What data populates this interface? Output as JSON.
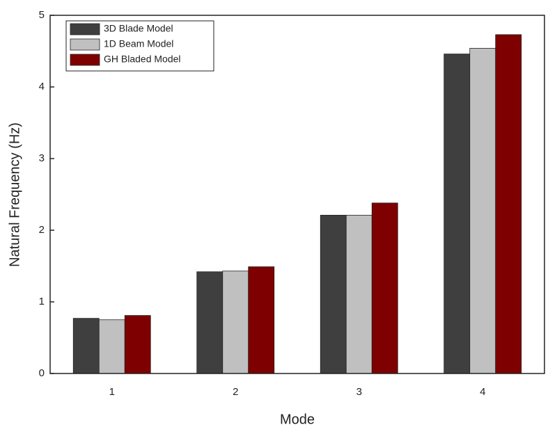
{
  "chart_data": {
    "type": "bar",
    "x_label": "Mode",
    "y_label": "Natural Frequency (Hz)",
    "categories": [
      "1",
      "2",
      "3",
      "4"
    ],
    "series": [
      {
        "name": "3D Blade Model",
        "color": "#3f3f3f",
        "values": [
          0.77,
          1.42,
          2.21,
          4.46
        ]
      },
      {
        "name": "1D Beam Model",
        "color": "#c0c0c0",
        "values": [
          0.75,
          1.43,
          2.21,
          4.54
        ]
      },
      {
        "name": "GH Bladed Model",
        "color": "#7f0000",
        "values": [
          0.81,
          1.49,
          2.38,
          4.73
        ]
      }
    ],
    "ylim": [
      0,
      5
    ],
    "yticks": [
      0,
      1,
      2,
      3,
      4,
      5
    ],
    "legend": "upper-left"
  }
}
